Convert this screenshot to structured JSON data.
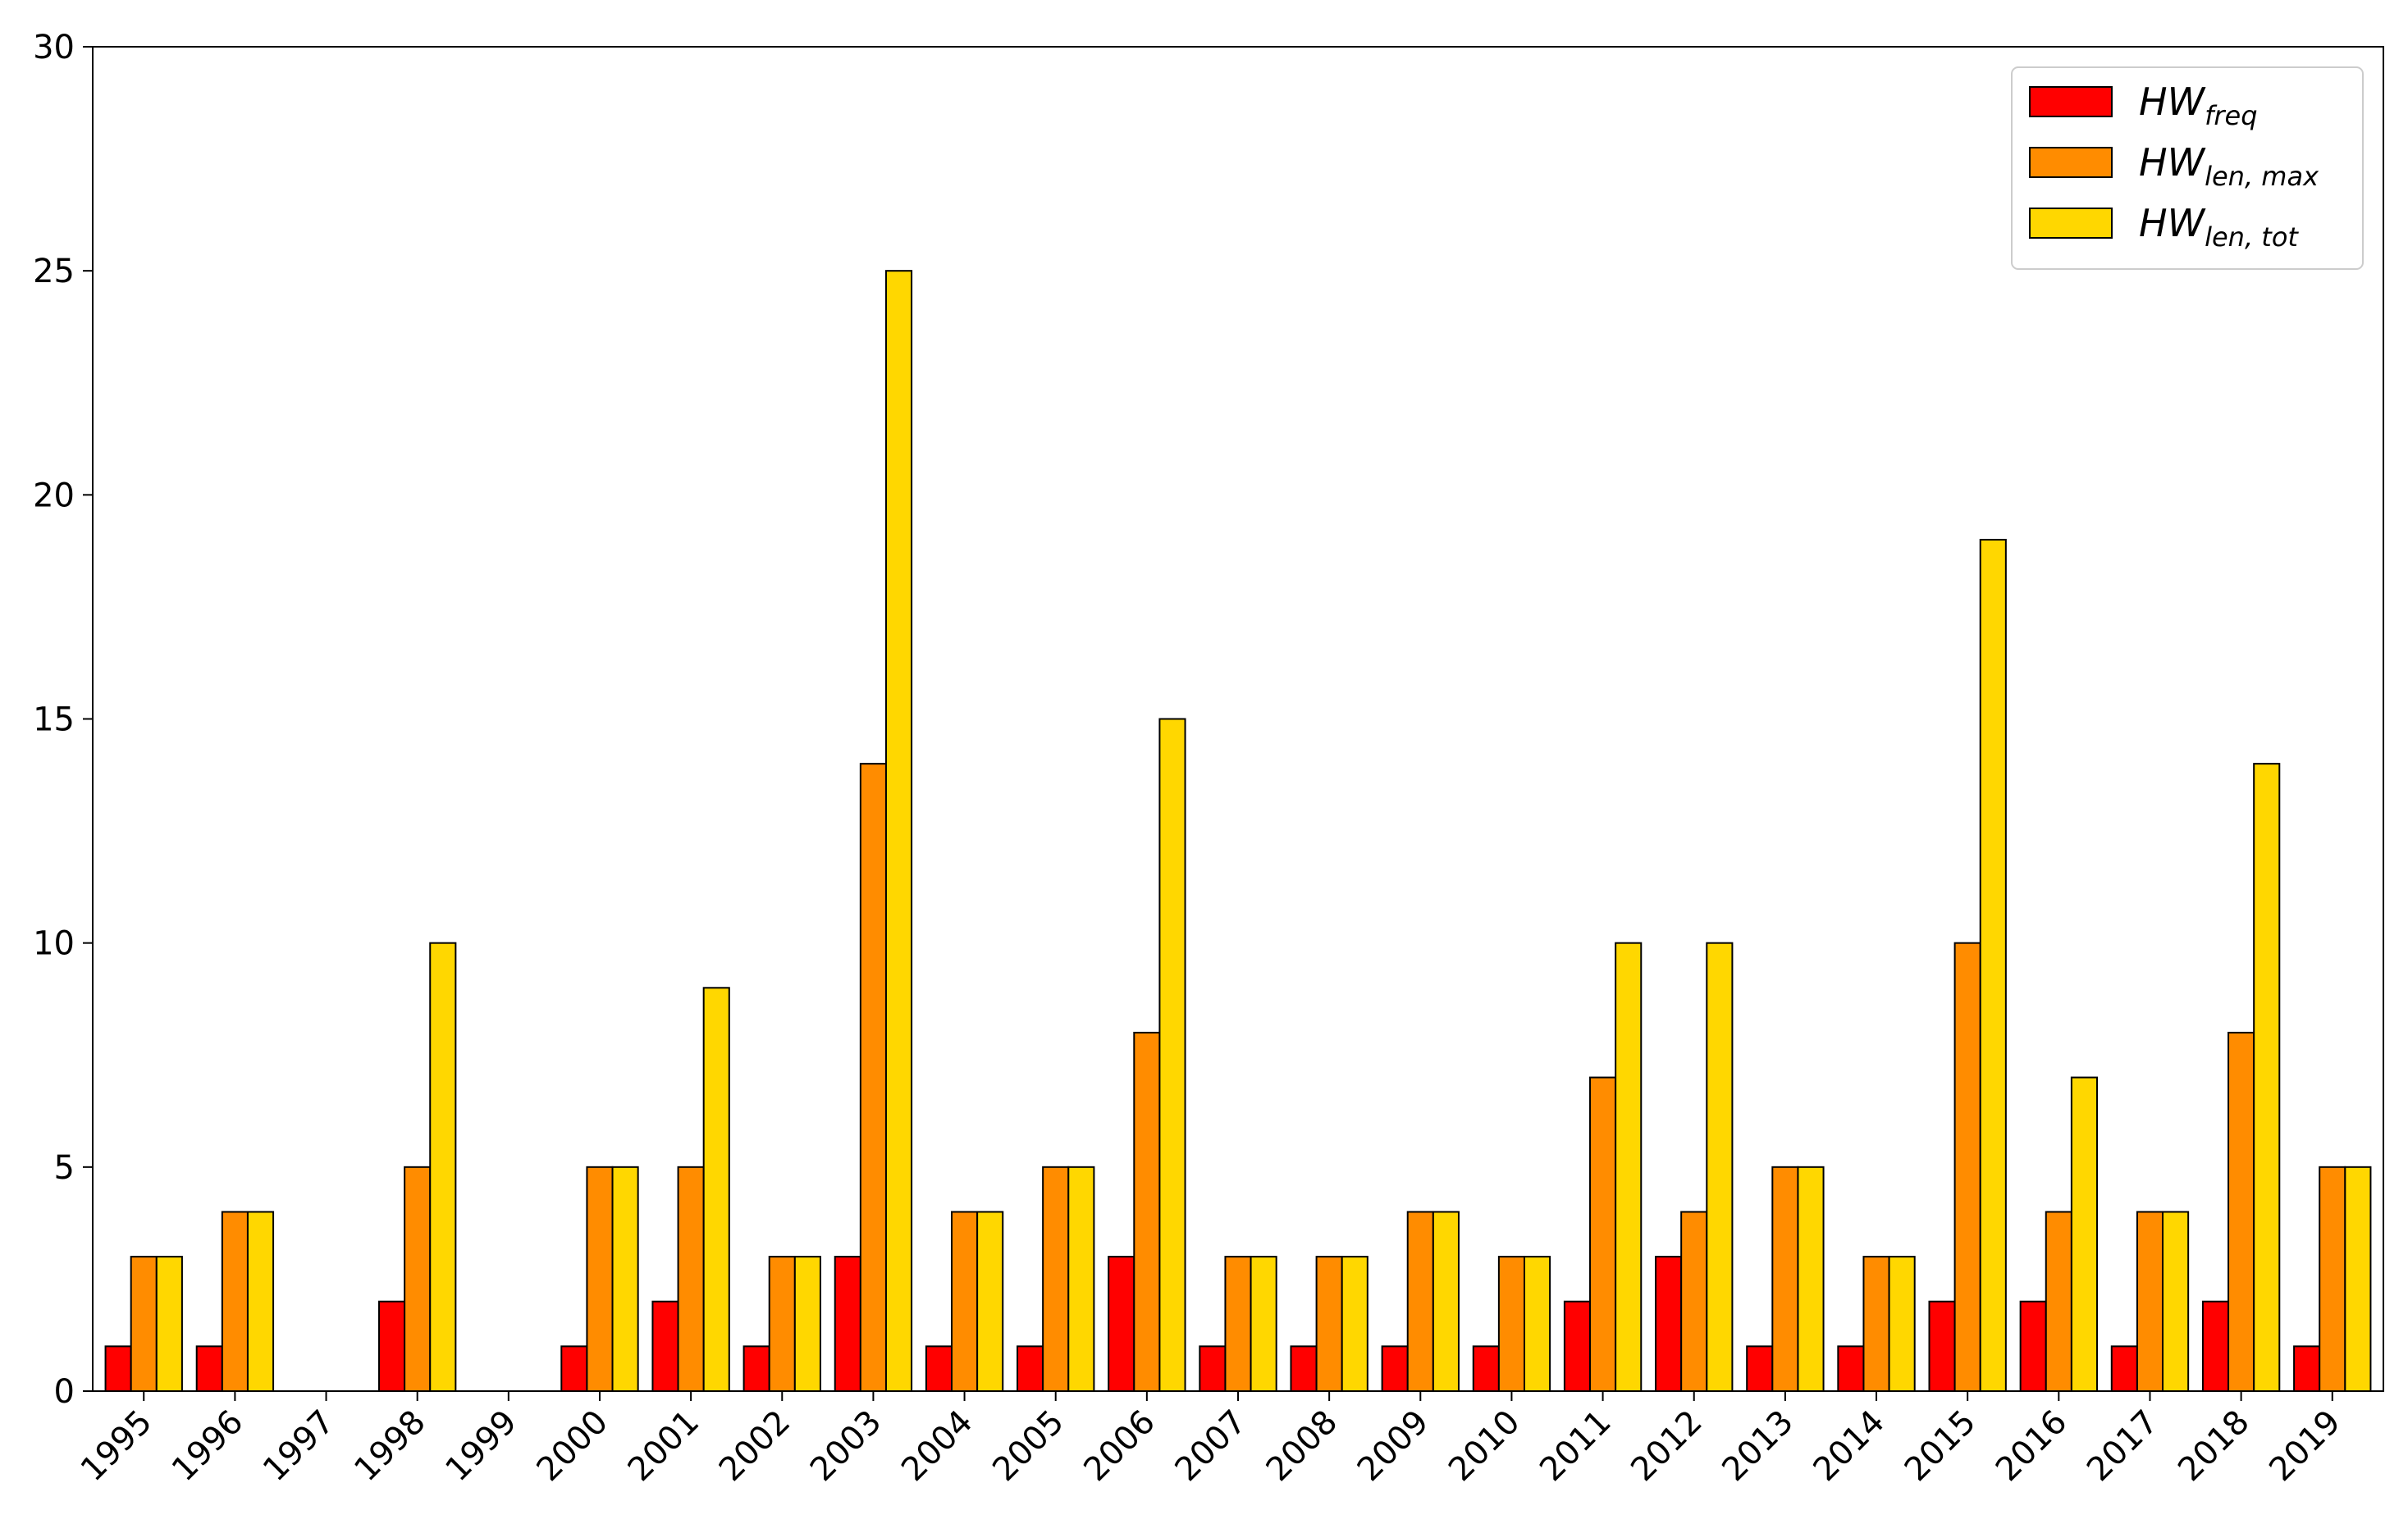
{
  "chart_data": {
    "type": "bar",
    "title": "",
    "xlabel": "",
    "ylabel": "",
    "ylim": [
      0,
      30
    ],
    "yticks": [
      0,
      5,
      10,
      15,
      20,
      25,
      30
    ],
    "grid": false,
    "legend_position": "top-right",
    "categories": [
      "1995",
      "1996",
      "1997",
      "1998",
      "1999",
      "2000",
      "2001",
      "2002",
      "2003",
      "2004",
      "2005",
      "2006",
      "2007",
      "2008",
      "2009",
      "2010",
      "2011",
      "2012",
      "2013",
      "2014",
      "2015",
      "2016",
      "2017",
      "2018",
      "2019"
    ],
    "series": [
      {
        "name": "HW_freq",
        "legend_main": "HW",
        "legend_sub": "freq",
        "color": "#ff0000",
        "values": [
          1,
          1,
          0,
          2,
          0,
          1,
          2,
          1,
          3,
          1,
          1,
          3,
          1,
          1,
          1,
          1,
          2,
          3,
          1,
          1,
          2,
          2,
          1,
          2,
          1
        ]
      },
      {
        "name": "HW_len, max",
        "legend_main": "HW",
        "legend_sub": "len, max",
        "color": "#ff8c00",
        "values": [
          3,
          4,
          0,
          5,
          0,
          5,
          5,
          3,
          14,
          4,
          5,
          8,
          3,
          3,
          4,
          3,
          7,
          4,
          5,
          3,
          10,
          4,
          4,
          8,
          5
        ]
      },
      {
        "name": "HW_len, tot",
        "legend_main": "HW",
        "legend_sub": "len, tot",
        "color": "#ffd700",
        "values": [
          3,
          4,
          0,
          10,
          0,
          5,
          9,
          3,
          25,
          4,
          5,
          15,
          3,
          3,
          4,
          3,
          10,
          10,
          5,
          3,
          19,
          7,
          4,
          14,
          5
        ]
      }
    ]
  }
}
